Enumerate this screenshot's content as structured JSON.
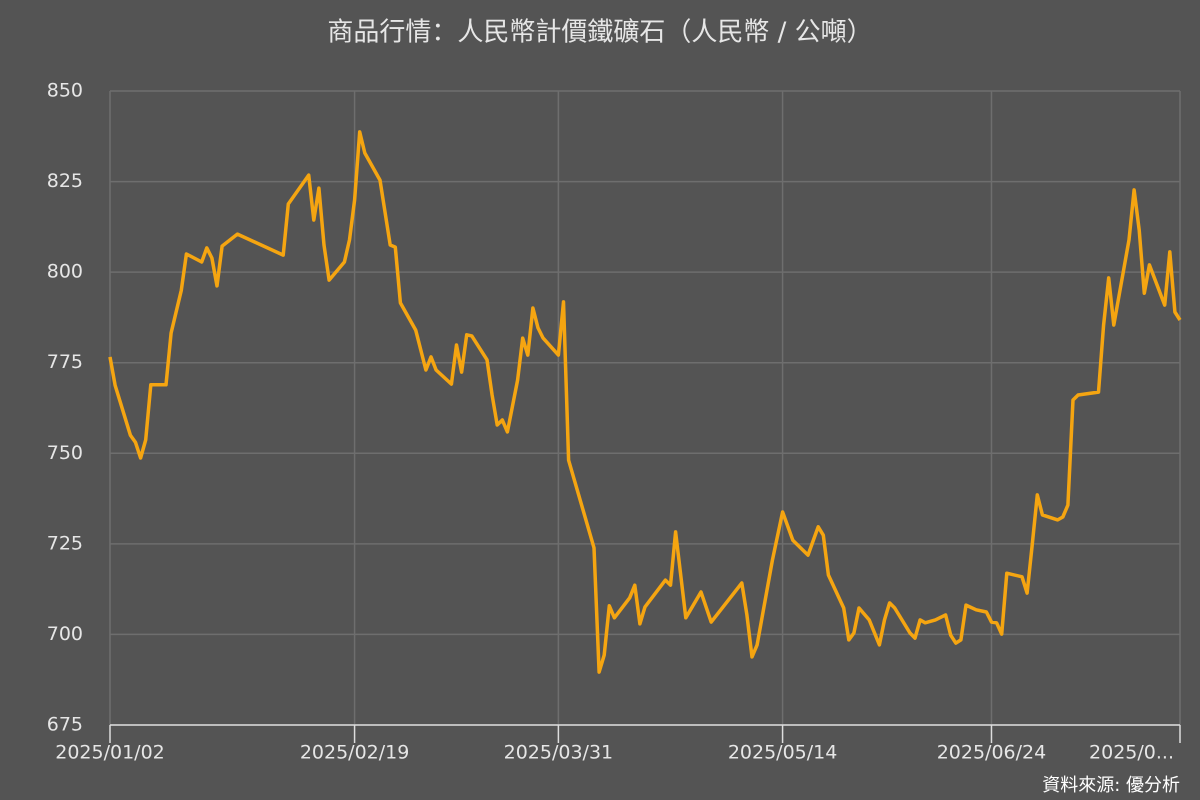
{
  "chart_data": {
    "type": "line",
    "title": "商品行情：人民幣計價鐵礦石（人民幣 / 公噸）",
    "source": "資料來源: 優分析",
    "color": "#f5a511",
    "grid": true,
    "x": [
      "2025/01/02",
      "2025/01/03",
      "2025/01/06",
      "2025/01/07",
      "2025/01/08",
      "2025/01/09",
      "2025/01/10",
      "2025/01/13",
      "2025/01/14",
      "2025/01/16",
      "2025/01/17",
      "2025/01/20",
      "2025/01/21",
      "2025/01/22",
      "2025/01/23",
      "2025/01/24",
      "2025/01/27",
      "2025/02/05",
      "2025/02/06",
      "2025/02/10",
      "2025/02/11",
      "2025/02/12",
      "2025/02/13",
      "2025/02/14",
      "2025/02/17",
      "2025/02/18",
      "2025/02/19",
      "2025/02/20",
      "2025/02/21",
      "2025/02/24",
      "2025/02/26",
      "2025/02/27",
      "2025/02/28",
      "2025/03/03",
      "2025/03/05",
      "2025/03/06",
      "2025/03/07",
      "2025/03/10",
      "2025/03/11",
      "2025/03/12",
      "2025/03/13",
      "2025/03/14",
      "2025/03/17",
      "2025/03/18",
      "2025/03/19",
      "2025/03/20",
      "2025/03/21",
      "2025/03/23",
      "2025/03/24",
      "2025/03/25",
      "2025/03/26",
      "2025/03/27",
      "2025/03/28",
      "2025/03/31",
      "2025/04/01",
      "2025/04/02",
      "2025/04/07",
      "2025/04/08",
      "2025/04/09",
      "2025/04/10",
      "2025/04/11",
      "2025/04/14",
      "2025/04/15",
      "2025/04/16",
      "2025/04/17",
      "2025/04/21",
      "2025/04/22",
      "2025/04/23",
      "2025/04/25",
      "2025/04/28",
      "2025/04/30",
      "2025/05/06",
      "2025/05/07",
      "2025/05/08",
      "2025/05/09",
      "2025/05/12",
      "2025/05/14",
      "2025/05/16",
      "2025/05/19",
      "2025/05/21",
      "2025/05/22",
      "2025/05/23",
      "2025/05/26",
      "2025/05/27",
      "2025/05/28",
      "2025/05/29",
      "2025/05/31",
      "2025/06/02",
      "2025/06/03",
      "2025/06/04",
      "2025/06/05",
      "2025/06/08",
      "2025/06/09",
      "2025/06/10",
      "2025/06/11",
      "2025/06/13",
      "2025/06/15",
      "2025/06/16",
      "2025/06/17",
      "2025/06/18",
      "2025/06/19",
      "2025/06/21",
      "2025/06/23",
      "2025/06/24",
      "2025/06/25",
      "2025/06/26",
      "2025/06/27",
      "2025/06/30",
      "2025/07/01",
      "2025/07/02",
      "2025/07/03",
      "2025/07/04",
      "2025/07/07",
      "2025/07/08",
      "2025/07/09",
      "2025/07/10",
      "2025/07/11",
      "2025/07/15",
      "2025/07/16",
      "2025/07/17",
      "2025/07/18",
      "2025/07/21",
      "2025/07/22",
      "2025/07/23",
      "2025/07/24",
      "2025/07/25",
      "2025/07/28",
      "2025/07/29",
      "2025/07/30",
      "2025/07/31"
    ],
    "values": [
      776.6,
      768.8,
      755,
      753,
      748.7,
      753.7,
      768.9,
      768.9,
      783.2,
      795,
      805,
      802.8,
      806.7,
      803.9,
      796.2,
      807.2,
      810.5,
      804.7,
      818.8,
      826.8,
      814.4,
      823.2,
      807.5,
      797.8,
      802.8,
      808.9,
      819.9,
      838.7,
      832.9,
      825.4,
      807.5,
      806.9,
      791.5,
      784,
      773,
      776.6,
      773,
      769.1,
      779.9,
      772.4,
      782.7,
      782.4,
      775.8,
      766.1,
      757.8,
      759.2,
      755.9,
      770.2,
      781.8,
      777.1,
      790.1,
      784.6,
      781.8,
      777.1,
      791.8,
      748.1,
      723.9,
      689.6,
      694.3,
      707.9,
      704.6,
      710.1,
      713.6,
      702.9,
      707.6,
      715,
      713.6,
      728.3,
      704.6,
      711.7,
      703.4,
      714.2,
      705.4,
      693.8,
      697.1,
      720.5,
      733.8,
      726,
      721.9,
      729.7,
      727.4,
      716.4,
      707.3,
      698.5,
      700.4,
      707.3,
      704,
      697.1,
      704,
      708.7,
      707.3,
      700.4,
      699,
      704,
      703.2,
      704,
      705.4,
      699.8,
      697.6,
      698.5,
      708.1,
      706.8,
      706.2,
      703.4,
      703.2,
      700.1,
      716.9,
      715.9,
      711.4,
      724.7,
      738.5,
      733,
      731.6,
      732.4,
      735.7,
      764.7,
      766.1,
      766.9,
      785.4,
      798.4,
      785.4,
      808.9,
      822.7,
      811.6,
      794.2,
      802,
      790.9,
      805.6,
      789,
      786.8
    ],
    "xlim": [
      "2025/01/02",
      "2025/07/31"
    ],
    "xticks": [
      "2025/01/02",
      "2025/02/19",
      "2025/03/31",
      "2025/05/14",
      "2025/06/24",
      {
        "value": "2025/07/31",
        "label": "2025/0..."
      }
    ],
    "ylim": [
      675,
      850
    ],
    "yticks": [
      675,
      700,
      725,
      750,
      775,
      800,
      825,
      850
    ]
  }
}
